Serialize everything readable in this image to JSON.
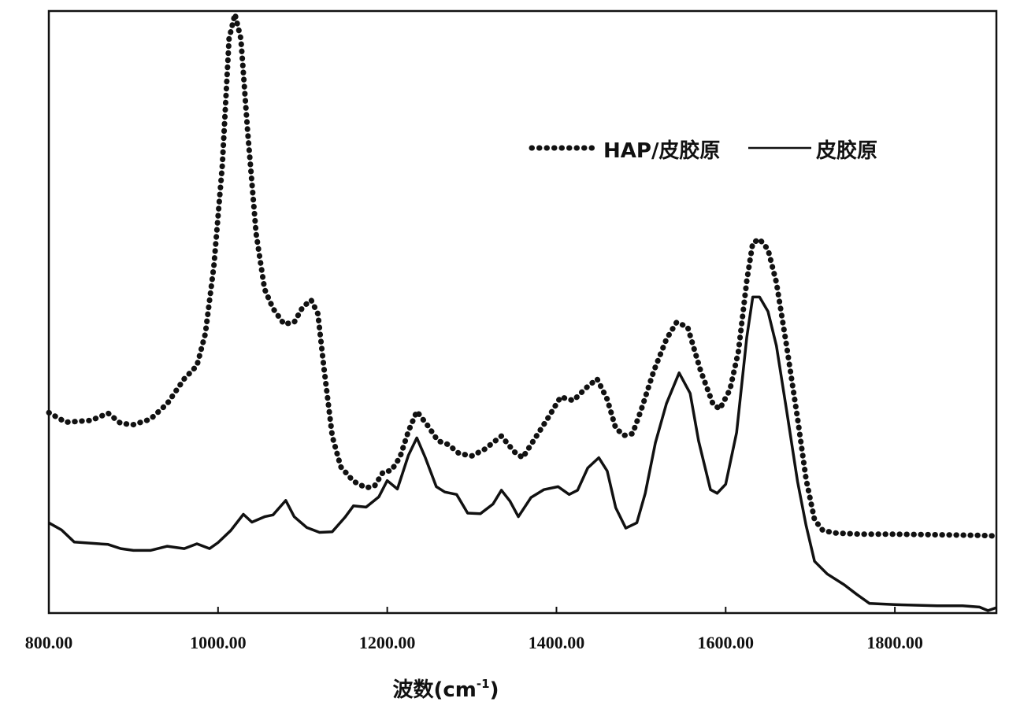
{
  "chart_data": {
    "type": "line",
    "xlabel": "波数(cm-1)",
    "xlabel_main": "波数(cm",
    "xlabel_sup": "-1",
    "xlabel_close": ")",
    "ylabel": "",
    "xlim": [
      800,
      1920
    ],
    "ylim": [
      0,
      1
    ],
    "grid": false,
    "y_ticks_shown": false,
    "legend_position": "top-right",
    "x_ticks": [
      {
        "value": 800,
        "label": "800.00"
      },
      {
        "value": 1000,
        "label": "1000.00"
      },
      {
        "value": 1200,
        "label": "1200.00"
      },
      {
        "value": 1400,
        "label": "1400.00"
      },
      {
        "value": 1600,
        "label": "1600.00"
      },
      {
        "value": 1800,
        "label": "1800.00"
      }
    ],
    "series": [
      {
        "name": "HAP/皮胶原",
        "style": "dotted",
        "color": "#111111",
        "points": [
          [
            800,
            0.333
          ],
          [
            820,
            0.317
          ],
          [
            850,
            0.32
          ],
          [
            870,
            0.332
          ],
          [
            885,
            0.315
          ],
          [
            900,
            0.313
          ],
          [
            920,
            0.322
          ],
          [
            940,
            0.348
          ],
          [
            960,
            0.389
          ],
          [
            975,
            0.411
          ],
          [
            985,
            0.464
          ],
          [
            995,
            0.576
          ],
          [
            1005,
            0.743
          ],
          [
            1013,
            0.954
          ],
          [
            1020,
            0.995
          ],
          [
            1027,
            0.954
          ],
          [
            1035,
            0.8
          ],
          [
            1045,
            0.63
          ],
          [
            1055,
            0.538
          ],
          [
            1065,
            0.506
          ],
          [
            1078,
            0.48
          ],
          [
            1090,
            0.483
          ],
          [
            1100,
            0.508
          ],
          [
            1110,
            0.52
          ],
          [
            1118,
            0.497
          ],
          [
            1125,
            0.409
          ],
          [
            1135,
            0.294
          ],
          [
            1145,
            0.243
          ],
          [
            1160,
            0.219
          ],
          [
            1175,
            0.208
          ],
          [
            1185,
            0.211
          ],
          [
            1195,
            0.234
          ],
          [
            1205,
            0.237
          ],
          [
            1215,
            0.259
          ],
          [
            1225,
            0.302
          ],
          [
            1235,
            0.335
          ],
          [
            1248,
            0.311
          ],
          [
            1260,
            0.286
          ],
          [
            1272,
            0.28
          ],
          [
            1285,
            0.265
          ],
          [
            1300,
            0.261
          ],
          [
            1315,
            0.272
          ],
          [
            1335,
            0.294
          ],
          [
            1350,
            0.268
          ],
          [
            1360,
            0.258
          ],
          [
            1375,
            0.291
          ],
          [
            1390,
            0.324
          ],
          [
            1405,
            0.359
          ],
          [
            1420,
            0.353
          ],
          [
            1435,
            0.374
          ],
          [
            1448,
            0.389
          ],
          [
            1460,
            0.355
          ],
          [
            1470,
            0.307
          ],
          [
            1480,
            0.295
          ],
          [
            1490,
            0.298
          ],
          [
            1500,
            0.337
          ],
          [
            1515,
            0.402
          ],
          [
            1530,
            0.455
          ],
          [
            1542,
            0.483
          ],
          [
            1555,
            0.475
          ],
          [
            1570,
            0.404
          ],
          [
            1585,
            0.347
          ],
          [
            1593,
            0.339
          ],
          [
            1605,
            0.371
          ],
          [
            1615,
            0.434
          ],
          [
            1625,
            0.552
          ],
          [
            1632,
            0.615
          ],
          [
            1640,
            0.621
          ],
          [
            1650,
            0.604
          ],
          [
            1660,
            0.549
          ],
          [
            1672,
            0.444
          ],
          [
            1685,
            0.323
          ],
          [
            1695,
            0.223
          ],
          [
            1705,
            0.155
          ],
          [
            1715,
            0.137
          ],
          [
            1730,
            0.133
          ],
          [
            1760,
            0.131
          ],
          [
            1800,
            0.131
          ],
          [
            1850,
            0.13
          ],
          [
            1900,
            0.129
          ],
          [
            1920,
            0.128
          ]
        ]
      },
      {
        "name": "皮胶原",
        "style": "solid",
        "color": "#111111",
        "points": [
          [
            800,
            0.15
          ],
          [
            815,
            0.138
          ],
          [
            830,
            0.118
          ],
          [
            850,
            0.116
          ],
          [
            870,
            0.114
          ],
          [
            885,
            0.107
          ],
          [
            900,
            0.104
          ],
          [
            920,
            0.104
          ],
          [
            940,
            0.111
          ],
          [
            960,
            0.107
          ],
          [
            975,
            0.115
          ],
          [
            990,
            0.107
          ],
          [
            1000,
            0.117
          ],
          [
            1015,
            0.137
          ],
          [
            1030,
            0.164
          ],
          [
            1040,
            0.151
          ],
          [
            1055,
            0.16
          ],
          [
            1065,
            0.163
          ],
          [
            1080,
            0.187
          ],
          [
            1090,
            0.16
          ],
          [
            1105,
            0.142
          ],
          [
            1120,
            0.134
          ],
          [
            1135,
            0.135
          ],
          [
            1150,
            0.159
          ],
          [
            1160,
            0.178
          ],
          [
            1175,
            0.176
          ],
          [
            1190,
            0.193
          ],
          [
            1200,
            0.22
          ],
          [
            1212,
            0.206
          ],
          [
            1225,
            0.262
          ],
          [
            1235,
            0.291
          ],
          [
            1245,
            0.258
          ],
          [
            1258,
            0.21
          ],
          [
            1268,
            0.201
          ],
          [
            1282,
            0.197
          ],
          [
            1295,
            0.166
          ],
          [
            1310,
            0.165
          ],
          [
            1325,
            0.181
          ],
          [
            1335,
            0.204
          ],
          [
            1345,
            0.186
          ],
          [
            1355,
            0.16
          ],
          [
            1370,
            0.192
          ],
          [
            1385,
            0.205
          ],
          [
            1402,
            0.21
          ],
          [
            1415,
            0.197
          ],
          [
            1425,
            0.204
          ],
          [
            1437,
            0.241
          ],
          [
            1450,
            0.258
          ],
          [
            1460,
            0.236
          ],
          [
            1470,
            0.175
          ],
          [
            1482,
            0.141
          ],
          [
            1495,
            0.15
          ],
          [
            1505,
            0.199
          ],
          [
            1517,
            0.283
          ],
          [
            1530,
            0.348
          ],
          [
            1545,
            0.399
          ],
          [
            1558,
            0.365
          ],
          [
            1568,
            0.286
          ],
          [
            1582,
            0.205
          ],
          [
            1590,
            0.199
          ],
          [
            1600,
            0.214
          ],
          [
            1613,
            0.3
          ],
          [
            1625,
            0.458
          ],
          [
            1632,
            0.525
          ],
          [
            1640,
            0.525
          ],
          [
            1650,
            0.501
          ],
          [
            1660,
            0.444
          ],
          [
            1672,
            0.337
          ],
          [
            1685,
            0.218
          ],
          [
            1695,
            0.146
          ],
          [
            1705,
            0.086
          ],
          [
            1720,
            0.065
          ],
          [
            1740,
            0.047
          ],
          [
            1755,
            0.031
          ],
          [
            1770,
            0.016
          ],
          [
            1800,
            0.014
          ],
          [
            1850,
            0.012
          ],
          [
            1880,
            0.012
          ],
          [
            1900,
            0.01
          ],
          [
            1910,
            0.004
          ],
          [
            1920,
            0.009
          ]
        ]
      }
    ]
  }
}
